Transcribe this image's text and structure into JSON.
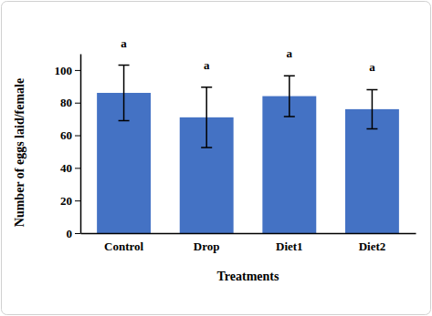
{
  "chart_data": {
    "type": "bar",
    "x_label": "Treatments",
    "y_label": "Number of eggs laid/female",
    "categories": [
      "Control",
      "Drop",
      "Diet1",
      "Diet2"
    ],
    "values": [
      86,
      71,
      84,
      76
    ],
    "errors": [
      17,
      18.5,
      12.5,
      12
    ],
    "annotations": [
      "a",
      "a",
      "a",
      "a"
    ],
    "color": "#4472c4",
    "ylim": [
      0,
      110
    ],
    "yticks": [
      0,
      20,
      40,
      60,
      80,
      100
    ],
    "grid": false
  }
}
